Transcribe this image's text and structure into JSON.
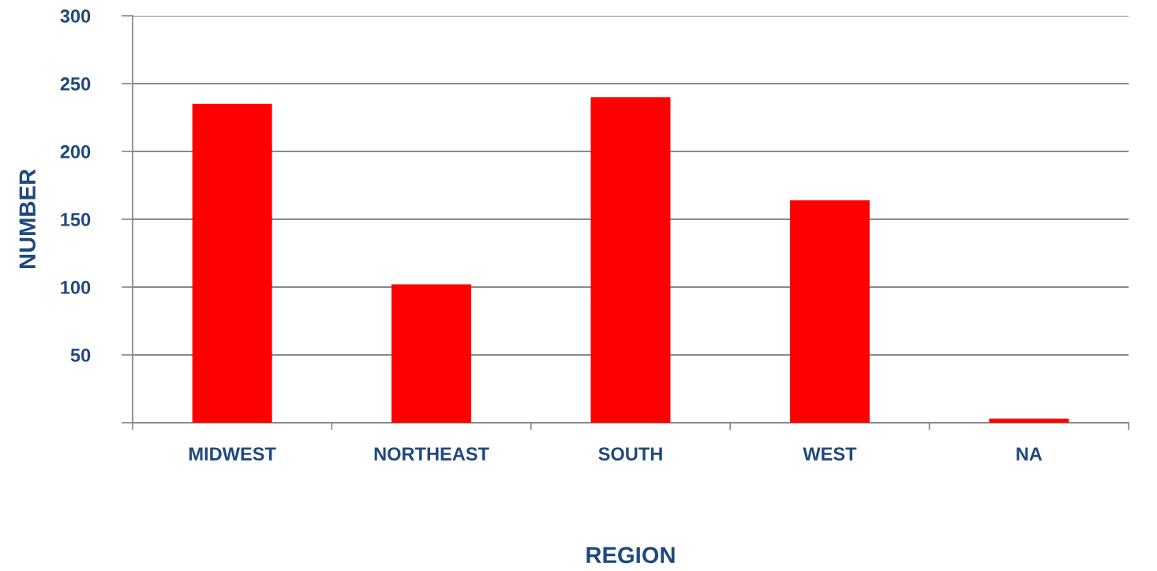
{
  "chart_data": {
    "type": "bar",
    "xlabel": "REGION",
    "ylabel": "NUMBER",
    "categories": [
      "MIDWEST",
      "NORTHEAST",
      "SOUTH",
      "WEST",
      "NA"
    ],
    "values": [
      235,
      102,
      240,
      164,
      3
    ],
    "color": "#ff0000",
    "ylim": [
      0,
      300
    ],
    "yticks": [
      {
        "value": 0,
        "label": null
      },
      50,
      100,
      150,
      200,
      250,
      300
    ],
    "grid": "y"
  }
}
